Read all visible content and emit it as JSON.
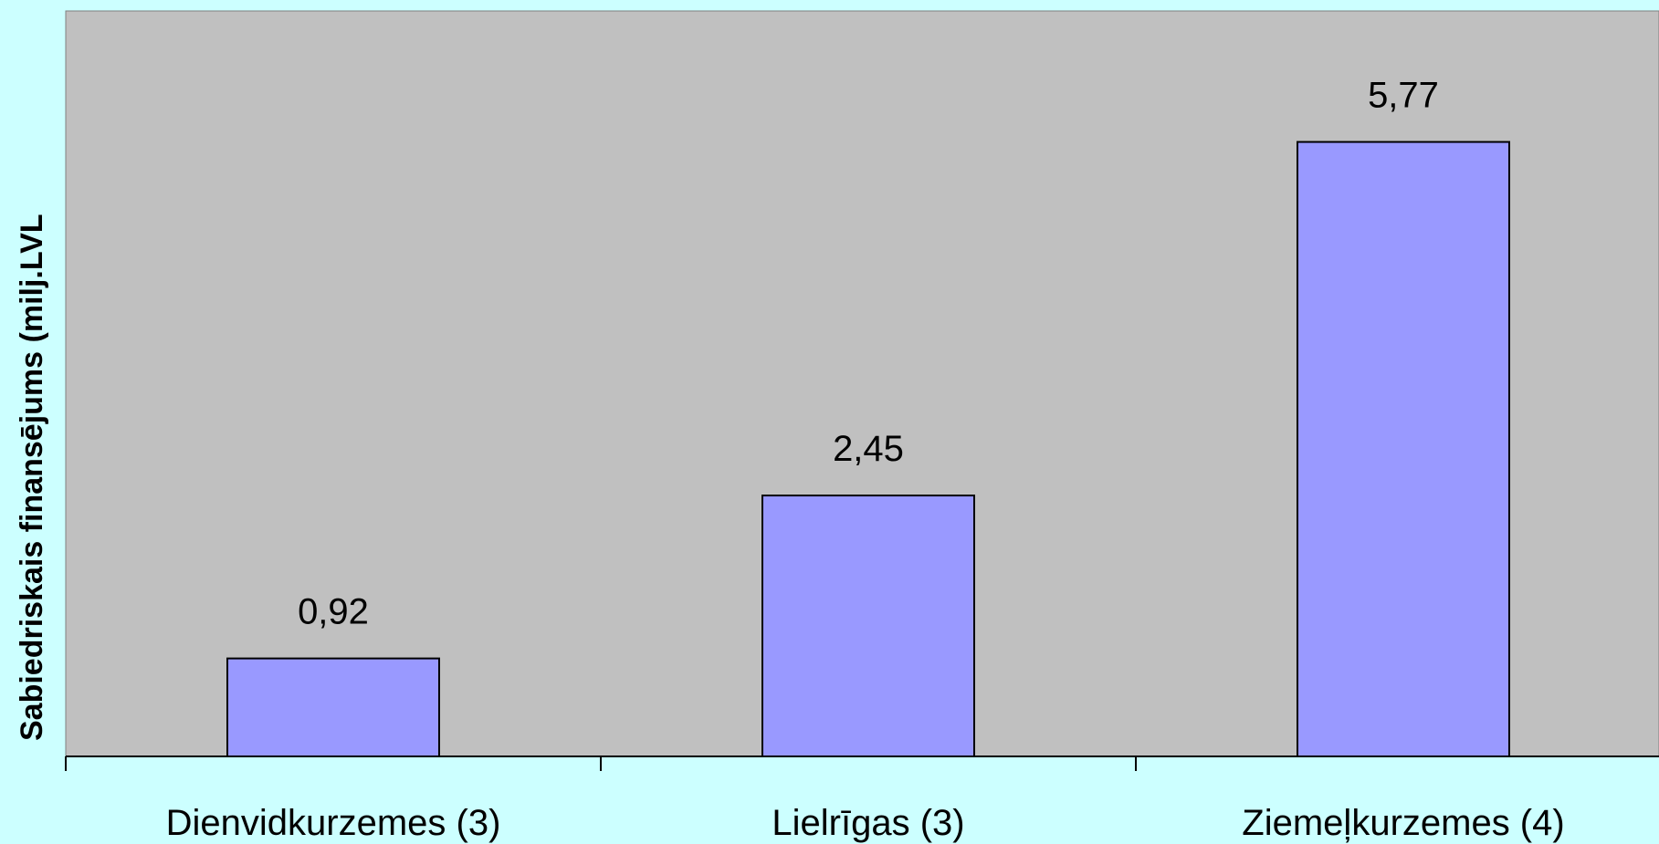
{
  "chart_data": {
    "type": "bar",
    "title": "",
    "xlabel": "",
    "ylabel": "Sabiedriskais finansējums (milj.LVL",
    "categories": [
      "Dienvidkurzemes (3)",
      "Lielrīgas (3)",
      "Ziemeļkurzemes (4)"
    ],
    "values": [
      0.92,
      2.45,
      5.77
    ],
    "value_labels": [
      "0,92",
      "2,45",
      "5,77"
    ],
    "ylim": [
      0,
      7
    ],
    "grid": false,
    "legend": "none"
  },
  "colors": {
    "background": "#ccffff",
    "plot_area": "#c0c0c0",
    "bar_fill": "#9999ff",
    "bar_stroke": "#000000"
  }
}
